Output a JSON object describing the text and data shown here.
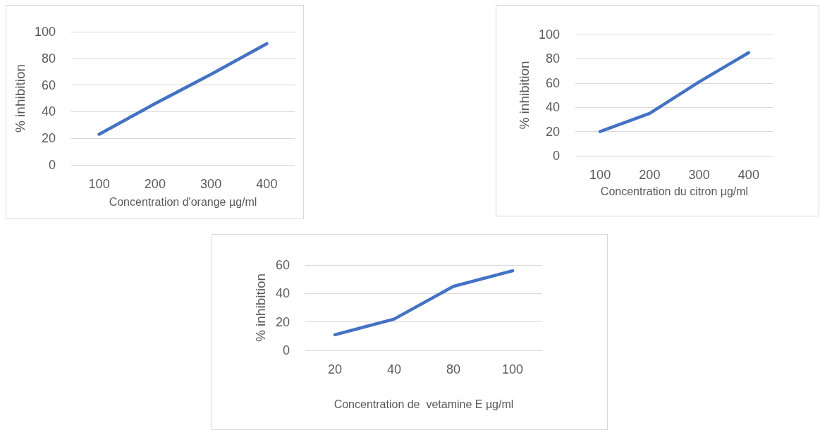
{
  "chart_data": [
    {
      "type": "line",
      "xlabel": "Concentration d'orange µg/ml",
      "ylabel": "% inhibition",
      "categories": [
        "100",
        "200",
        "300",
        "400"
      ],
      "series": [
        {
          "color": "#4472c4",
          "values": [
            23,
            46,
            68,
            91
          ]
        }
      ],
      "ylim": [
        0,
        100
      ],
      "yticks": [
        0,
        20,
        40,
        60,
        80,
        100
      ],
      "grid": "y",
      "marker": "none",
      "line_style": "solid"
    },
    {
      "type": "line",
      "xlabel": "Concentration du citron µg/ml",
      "ylabel": "% inhibition",
      "categories": [
        "100",
        "200",
        "300",
        "400"
      ],
      "series": [
        {
          "color": "#4472c4",
          "values": [
            20,
            35,
            61,
            85
          ]
        }
      ],
      "ylim": [
        0,
        100
      ],
      "yticks": [
        0,
        20,
        40,
        60,
        80,
        100
      ],
      "grid": "y",
      "marker": "none",
      "line_style": "solid"
    },
    {
      "type": "line",
      "xlabel": "Concentration de  vetamine E µg/ml",
      "ylabel": "% inhibition",
      "categories": [
        "20",
        "40",
        "80",
        "100"
      ],
      "series": [
        {
          "color": "#4472c4",
          "values": [
            11,
            22,
            45,
            56
          ]
        }
      ],
      "ylim": [
        0,
        60
      ],
      "yticks": [
        0,
        20,
        40,
        60
      ],
      "grid": "y",
      "marker": "none",
      "line_style": "solid"
    }
  ]
}
